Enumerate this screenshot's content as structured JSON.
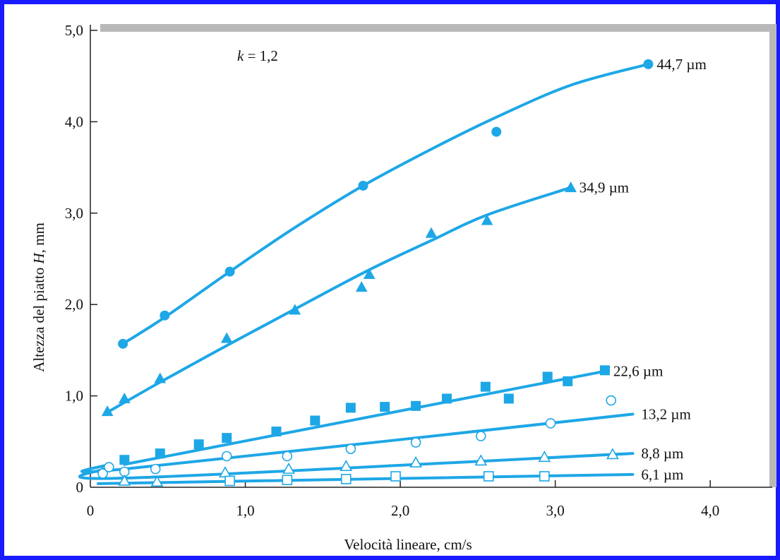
{
  "chart_data": {
    "type": "scatter",
    "title": "",
    "xlabel": "Velocità lineare, cm/s",
    "ylabel_prefix": "Altezza del piatto ",
    "ylabel_var": "H",
    "ylabel_suffix": ", mm",
    "xlim": [
      0,
      4.4
    ],
    "ylim": [
      0,
      5.0
    ],
    "x_ticks": [
      "0",
      "1,0",
      "2,0",
      "3,0",
      "4,0"
    ],
    "x_tick_values": [
      0,
      1,
      2,
      3,
      4
    ],
    "y_ticks": [
      "0",
      "1,0",
      "2,0",
      "3,0",
      "4,0",
      "5,0"
    ],
    "y_tick_values": [
      0,
      1,
      2,
      3,
      4,
      5
    ],
    "annotation": {
      "var": "k",
      "rest": " = 1,2"
    },
    "series_color": "#1ea7e6",
    "series": [
      {
        "name": "44,7 µm",
        "marker": "filled-circle",
        "points": [
          [
            0.21,
            1.57
          ],
          [
            0.48,
            1.88
          ],
          [
            0.9,
            2.36
          ],
          [
            1.76,
            3.3
          ],
          [
            2.62,
            3.89
          ],
          [
            3.6,
            4.63
          ]
        ],
        "curve": [
          [
            0.21,
            1.57
          ],
          [
            0.48,
            1.86
          ],
          [
            0.9,
            2.36
          ],
          [
            1.3,
            2.82
          ],
          [
            1.76,
            3.3
          ],
          [
            2.2,
            3.7
          ],
          [
            2.62,
            4.05
          ],
          [
            3.1,
            4.4
          ],
          [
            3.6,
            4.63
          ]
        ]
      },
      {
        "name": "34,9 µm",
        "marker": "filled-triangle",
        "points": [
          [
            0.11,
            0.83
          ],
          [
            0.22,
            0.97
          ],
          [
            0.45,
            1.19
          ],
          [
            0.88,
            1.63
          ],
          [
            1.32,
            1.94
          ],
          [
            1.75,
            2.19
          ],
          [
            1.8,
            2.33
          ],
          [
            2.2,
            2.78
          ],
          [
            2.56,
            2.92
          ],
          [
            3.1,
            3.28
          ]
        ],
        "curve": [
          [
            0.11,
            0.82
          ],
          [
            0.45,
            1.15
          ],
          [
            0.88,
            1.55
          ],
          [
            1.32,
            1.95
          ],
          [
            1.8,
            2.38
          ],
          [
            2.2,
            2.7
          ],
          [
            2.56,
            2.98
          ],
          [
            3.1,
            3.28
          ]
        ]
      },
      {
        "name": "22,6 µm",
        "marker": "filled-square",
        "points": [
          [
            0.22,
            0.3
          ],
          [
            0.45,
            0.37
          ],
          [
            0.7,
            0.47
          ],
          [
            0.88,
            0.54
          ],
          [
            1.2,
            0.61
          ],
          [
            1.45,
            0.73
          ],
          [
            1.68,
            0.87
          ],
          [
            1.9,
            0.88
          ],
          [
            2.1,
            0.89
          ],
          [
            2.3,
            0.97
          ],
          [
            2.55,
            1.1
          ],
          [
            2.7,
            0.97
          ],
          [
            2.95,
            1.21
          ],
          [
            3.08,
            1.16
          ],
          [
            3.32,
            1.28
          ]
        ],
        "curve": [
          [
            0.22,
            0.25
          ],
          [
            3.32,
            1.27
          ]
        ]
      },
      {
        "name": "13,2 µm",
        "marker": "open-circle",
        "points": [
          [
            0.08,
            0.15
          ],
          [
            0.12,
            0.22
          ],
          [
            0.22,
            0.17
          ],
          [
            0.42,
            0.2
          ],
          [
            0.88,
            0.34
          ],
          [
            1.27,
            0.34
          ],
          [
            1.68,
            0.42
          ],
          [
            2.1,
            0.49
          ],
          [
            2.52,
            0.56
          ],
          [
            2.97,
            0.7
          ],
          [
            3.36,
            0.95
          ]
        ],
        "curve": [
          [
            0.12,
            0.25
          ],
          [
            0.22,
            0.2
          ],
          [
            3.5,
            0.8
          ]
        ]
      },
      {
        "name": "8,8 µm",
        "marker": "open-triangle",
        "points": [
          [
            0.22,
            0.07
          ],
          [
            0.43,
            0.06
          ],
          [
            0.87,
            0.16
          ],
          [
            1.28,
            0.2
          ],
          [
            1.65,
            0.23
          ],
          [
            2.1,
            0.27
          ],
          [
            2.52,
            0.29
          ],
          [
            2.93,
            0.33
          ],
          [
            3.37,
            0.36
          ]
        ],
        "curve": [
          [
            0.08,
            0.2
          ],
          [
            0.22,
            0.1
          ],
          [
            3.5,
            0.37
          ]
        ]
      },
      {
        "name": "6,1 µm",
        "marker": "open-square",
        "points": [
          [
            0.9,
            0.07
          ],
          [
            1.27,
            0.08
          ],
          [
            1.65,
            0.09
          ],
          [
            1.97,
            0.12
          ],
          [
            2.57,
            0.12
          ],
          [
            2.93,
            0.12
          ]
        ],
        "curve": [
          [
            0.05,
            0.04
          ],
          [
            3.5,
            0.14
          ]
        ]
      }
    ]
  }
}
